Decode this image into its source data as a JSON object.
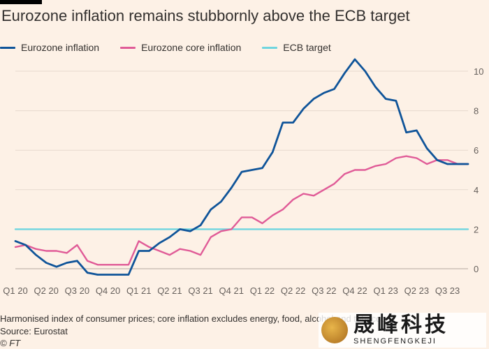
{
  "title": "Eurozone inflation remains stubbornly above the ECB target",
  "note": "Harmonised index of consumer prices; core inflation excludes energy, food, alcohol and tobacco",
  "source": "Source: Eurostat",
  "copyright": "© FT",
  "watermark": {
    "cn": "晟峰科技",
    "en": "SHENGFENGKEJI"
  },
  "chart_data": {
    "type": "line",
    "title": "Eurozone inflation remains stubbornly above the ECB target",
    "xlabel": "",
    "ylabel": "",
    "ylim": [
      -0.5,
      10.8
    ],
    "yticks": [
      0,
      2,
      4,
      6,
      8,
      10
    ],
    "grid": true,
    "legend_position": "top-left",
    "x_tick_labels": [
      "Q1 20",
      "Q2 20",
      "Q3 20",
      "Q4 20",
      "Q1 21",
      "Q2 21",
      "Q3 21",
      "Q4 21",
      "Q1 22",
      "Q2 22",
      "Q3 22",
      "Q4 22",
      "Q1 23",
      "Q2 23",
      "Q3 23"
    ],
    "x": [
      "2020-01",
      "2020-02",
      "2020-03",
      "2020-04",
      "2020-05",
      "2020-06",
      "2020-07",
      "2020-08",
      "2020-09",
      "2020-10",
      "2020-11",
      "2020-12",
      "2021-01",
      "2021-02",
      "2021-03",
      "2021-04",
      "2021-05",
      "2021-06",
      "2021-07",
      "2021-08",
      "2021-09",
      "2021-10",
      "2021-11",
      "2021-12",
      "2022-01",
      "2022-02",
      "2022-03",
      "2022-04",
      "2022-05",
      "2022-06",
      "2022-07",
      "2022-08",
      "2022-09",
      "2022-10",
      "2022-11",
      "2022-12",
      "2023-01",
      "2023-02",
      "2023-03",
      "2023-04",
      "2023-05",
      "2023-06",
      "2023-07",
      "2023-08",
      "2023-09"
    ],
    "series": [
      {
        "name": "Eurozone inflation",
        "color": "#0f5499",
        "values": [
          1.4,
          1.2,
          0.7,
          0.3,
          0.1,
          0.3,
          0.4,
          -0.2,
          -0.3,
          -0.3,
          -0.3,
          -0.3,
          0.9,
          0.9,
          1.3,
          1.6,
          2.0,
          1.9,
          2.2,
          3.0,
          3.4,
          4.1,
          4.9,
          5.0,
          5.1,
          5.9,
          7.4,
          7.4,
          8.1,
          8.6,
          8.9,
          9.1,
          9.9,
          10.6,
          10.0,
          9.2,
          8.6,
          8.5,
          6.9,
          7.0,
          6.1,
          5.5,
          5.3,
          5.3,
          5.3
        ]
      },
      {
        "name": "Eurozone core inflation",
        "color": "#e05b97",
        "values": [
          1.1,
          1.2,
          1.0,
          0.9,
          0.9,
          0.8,
          1.2,
          0.4,
          0.2,
          0.2,
          0.2,
          0.2,
          1.4,
          1.1,
          0.9,
          0.7,
          1.0,
          0.9,
          0.7,
          1.6,
          1.9,
          2.0,
          2.6,
          2.6,
          2.3,
          2.7,
          3.0,
          3.5,
          3.8,
          3.7,
          4.0,
          4.3,
          4.8,
          5.0,
          5.0,
          5.2,
          5.3,
          5.6,
          5.7,
          5.6,
          5.3,
          5.5,
          5.5,
          5.3,
          5.3
        ]
      },
      {
        "name": "ECB target",
        "color": "#6fd5df",
        "values": [
          2,
          2,
          2,
          2,
          2,
          2,
          2,
          2,
          2,
          2,
          2,
          2,
          2,
          2,
          2,
          2,
          2,
          2,
          2,
          2,
          2,
          2,
          2,
          2,
          2,
          2,
          2,
          2,
          2,
          2,
          2,
          2,
          2,
          2,
          2,
          2,
          2,
          2,
          2,
          2,
          2,
          2,
          2,
          2,
          2
        ]
      }
    ]
  }
}
